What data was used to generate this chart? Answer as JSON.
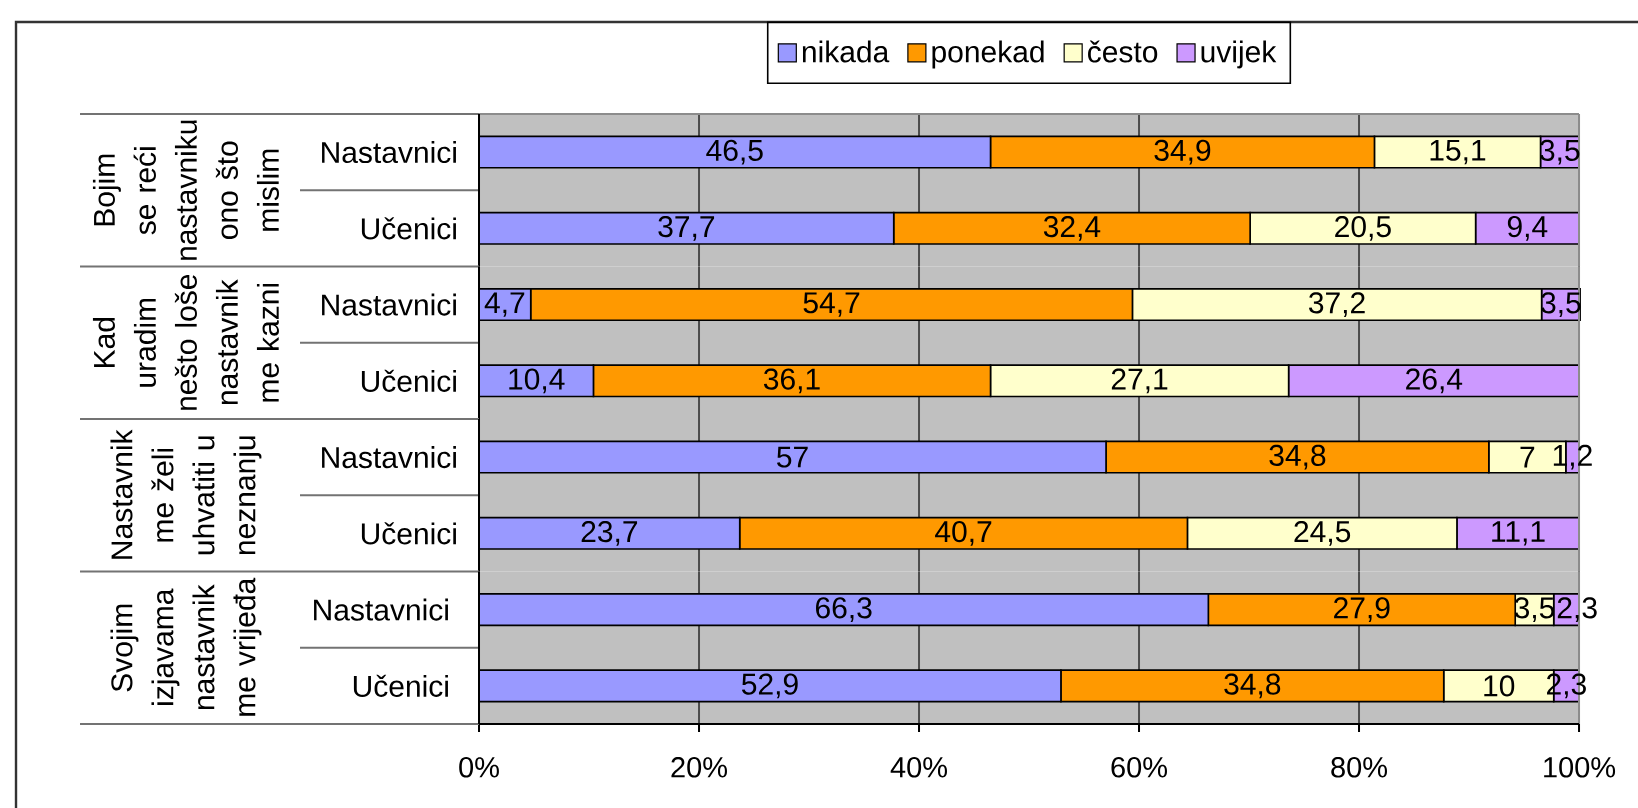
{
  "chart_data": [
    {
      "type": "bar",
      "orientation": "horizontal",
      "stacked": true,
      "ylabel": "Bojim se reći nastavniku ono što mislim",
      "categories": [
        "Nastavnici",
        "Učenici"
      ],
      "series": [
        {
          "name": "nikada",
          "color": "#9999ff",
          "values": [
            46.5,
            37.7
          ],
          "value_labels": [
            "46,5",
            "37,7"
          ]
        },
        {
          "name": "ponekad",
          "color": "#ff9900",
          "values": [
            34.9,
            32.4
          ],
          "value_labels": [
            "34,9",
            "32,4"
          ]
        },
        {
          "name": "često",
          "color": "#ffffcc",
          "values": [
            15.1,
            20.5
          ],
          "value_labels": [
            "15,1",
            "20,5"
          ]
        },
        {
          "name": "uvijek",
          "color": "#cc99ff",
          "values": [
            3.5,
            9.4
          ],
          "value_labels": [
            "3,5",
            "9,4"
          ]
        }
      ],
      "xlim": [
        0,
        100
      ],
      "xticks": [
        0,
        20,
        40,
        60,
        80,
        100
      ],
      "grid": "x",
      "legend": "top",
      "tick_labels": "y"
    },
    {
      "type": "bar",
      "orientation": "horizontal",
      "stacked": true,
      "ylabel": "Kad uradim nešto loše nastavnik me kazni",
      "categories": [
        "Nastavnici",
        "Učenici"
      ],
      "series": [
        {
          "color": "#9999ff",
          "values": [
            4.7,
            10.4
          ],
          "value_labels": [
            "4,7",
            "10,4"
          ]
        },
        {
          "color": "#ff9900",
          "values": [
            54.7,
            36.1
          ],
          "value_labels": [
            "54,7",
            "36,1"
          ]
        },
        {
          "color": "#ffffcc",
          "values": [
            37.2,
            27.1
          ],
          "value_labels": [
            "37,2",
            "27,1"
          ]
        },
        {
          "color": "#cc99ff",
          "values": [
            3.5,
            26.4
          ],
          "value_labels": [
            "3,5",
            "26,4"
          ]
        }
      ],
      "xlim": [
        0,
        100
      ],
      "xticks": [
        0,
        20,
        40,
        60,
        80,
        100
      ],
      "grid": "x",
      "tick_labels": "y"
    },
    {
      "type": "bar",
      "orientation": "horizontal",
      "stacked": true,
      "ylabel": "Nastavnik me želi uhvatiti u neznanju",
      "categories": [
        "Nastavnici",
        "Učenici"
      ],
      "series": [
        {
          "color": "#9999ff",
          "values": [
            57,
            23.7
          ],
          "value_labels": [
            "57",
            "23,7"
          ]
        },
        {
          "color": "#ff9900",
          "values": [
            34.8,
            40.7
          ],
          "value_labels": [
            "34,8",
            "40,7"
          ]
        },
        {
          "color": "#ffffcc",
          "values": [
            7,
            24.5
          ],
          "value_labels": [
            "7",
            "24,5"
          ]
        },
        {
          "color": "#cc99ff",
          "values": [
            1.2,
            11.1
          ],
          "value_labels": [
            "1,2",
            "11,1"
          ]
        }
      ],
      "xlim": [
        0,
        100
      ],
      "xticks": [
        0,
        20,
        40,
        60,
        80,
        100
      ],
      "grid": "x",
      "tick_labels": "y"
    },
    {
      "type": "bar",
      "orientation": "horizontal",
      "stacked": true,
      "ylabel": "Svojim izjavama nastavnik me vrijeđa",
      "categories": [
        "Nastavnici",
        "Učenici"
      ],
      "series": [
        {
          "color": "#9999ff",
          "values": [
            66.3,
            52.9
          ],
          "value_labels": [
            "66,3",
            "52,9"
          ]
        },
        {
          "color": "#ff9900",
          "values": [
            27.9,
            34.8
          ],
          "value_labels": [
            "27,9",
            "34,8"
          ]
        },
        {
          "color": "#ffffcc",
          "values": [
            3.5,
            10
          ],
          "value_labels": [
            "3,5",
            "10"
          ]
        },
        {
          "color": "#cc99ff",
          "values": [
            2.3,
            2.3
          ],
          "value_labels": [
            "2,3",
            "2,3"
          ]
        }
      ],
      "xlim": [
        0,
        100
      ],
      "xticks": [
        {
          "value": 0,
          "label": "0%"
        },
        {
          "value": 20,
          "label": "20%"
        },
        {
          "value": 40,
          "label": "40%"
        },
        {
          "value": 60,
          "label": "60%"
        },
        {
          "value": 80,
          "label": "80%"
        },
        {
          "value": 100,
          "label": "100%"
        }
      ],
      "grid": "x"
    }
  ]
}
